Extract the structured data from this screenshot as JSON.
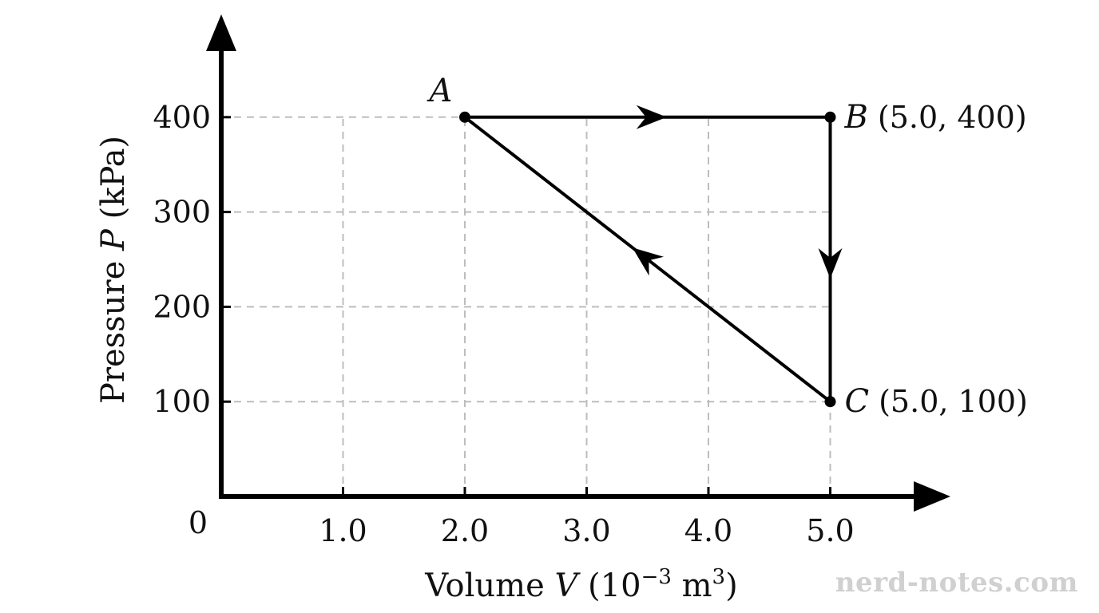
{
  "chart_data": {
    "type": "line",
    "title": "",
    "xlabel": {
      "prefix": "Volume ",
      "symbol": "V",
      "unit_open": " (10",
      "exponent": "−3",
      "unit_mid": " m",
      "unit_exponent": "3",
      "unit_close": ")"
    },
    "ylabel": {
      "prefix": "Pressure ",
      "symbol": "P",
      "unit": " (kPa)"
    },
    "xlim": [
      0,
      6.0
    ],
    "ylim": [
      0,
      500
    ],
    "x_ticks": [
      {
        "value": 1.0,
        "label": "1.0"
      },
      {
        "value": 2.0,
        "label": "2.0"
      },
      {
        "value": 3.0,
        "label": "3.0"
      },
      {
        "value": 4.0,
        "label": "4.0"
      },
      {
        "value": 5.0,
        "label": "5.0"
      }
    ],
    "y_ticks": [
      {
        "value": 100,
        "label": "100"
      },
      {
        "value": 200,
        "label": "200"
      },
      {
        "value": 300,
        "label": "300"
      },
      {
        "value": 400,
        "label": "400"
      }
    ],
    "origin_label": "0",
    "grid": true,
    "points": [
      {
        "id": "A",
        "name": "A",
        "x": 2.0,
        "y": 400,
        "coord_label": ""
      },
      {
        "id": "B",
        "name": "B",
        "x": 5.0,
        "y": 400,
        "coord_label": "(5.0, 400)"
      },
      {
        "id": "C",
        "name": "C",
        "x": 5.0,
        "y": 100,
        "coord_label": "(5.0, 100)"
      }
    ],
    "segments": [
      {
        "from": "A",
        "to": "B"
      },
      {
        "from": "B",
        "to": "C"
      },
      {
        "from": "C",
        "to": "A"
      }
    ]
  },
  "watermark": "nerd-notes.com"
}
